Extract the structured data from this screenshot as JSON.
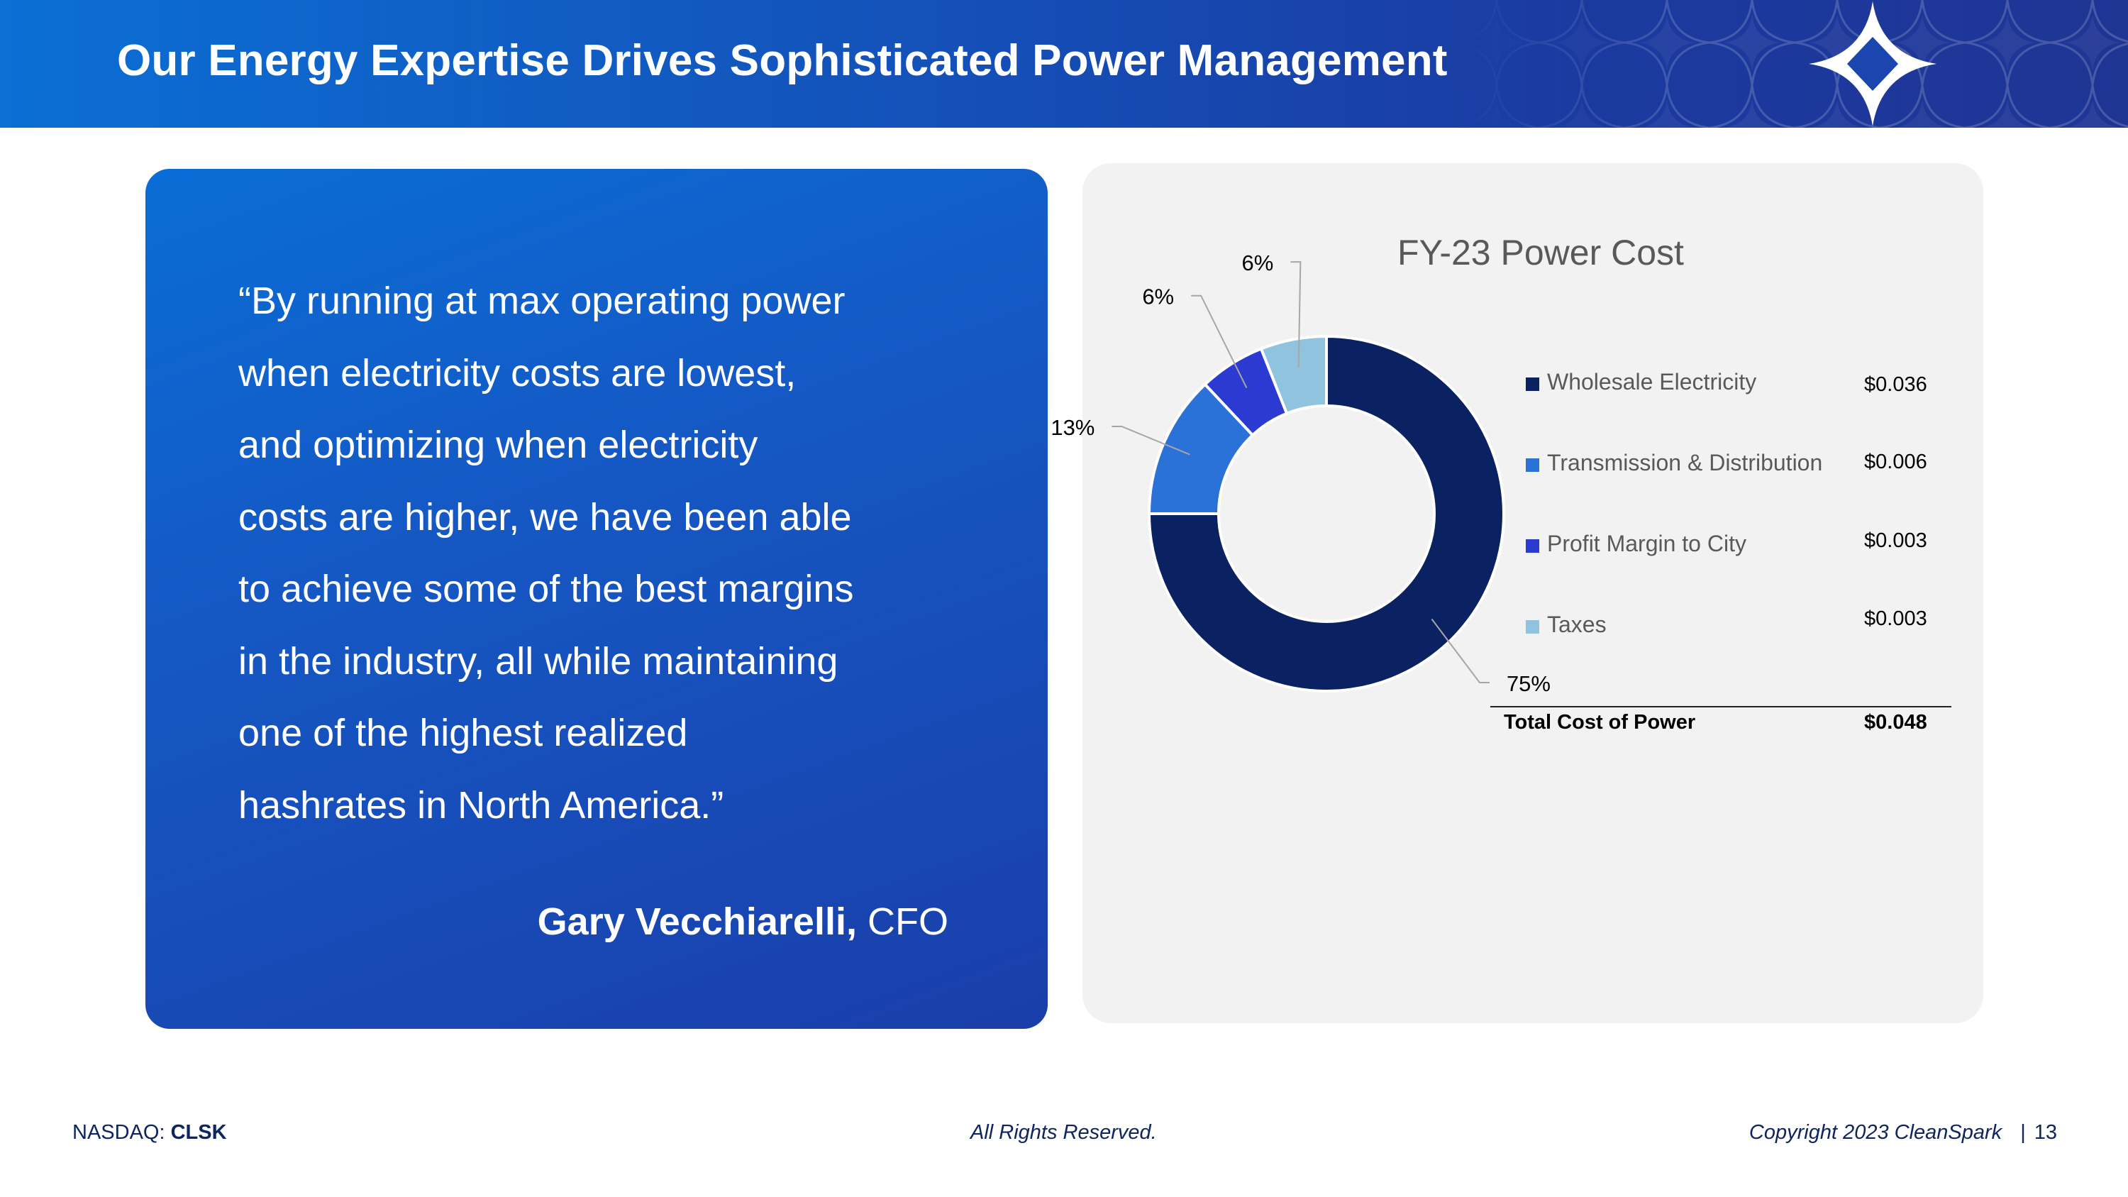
{
  "header": {
    "title": "Our Energy Expertise Drives Sophisticated Power Management"
  },
  "quote": {
    "lines": [
      "“By running at max operating power",
      "when electricity costs are lowest,",
      "and optimizing when electricity",
      "costs are higher, we have been able",
      "to achieve some of the best margins",
      "in the industry, all while maintaining",
      "one of the highest realized",
      "hashrates in North America.”"
    ],
    "author_name": "Gary Vecchiarelli,",
    "author_title": "CFO"
  },
  "chart_data": {
    "type": "pie",
    "title": "FY-23 Power Cost",
    "donut": true,
    "categories": [
      "Wholesale Electricity",
      "Transmission & Distribution",
      "Profit Margin to City",
      "Taxes"
    ],
    "values": [
      75,
      13,
      6,
      6
    ],
    "value_labels": [
      "75%",
      "13%",
      "6%",
      "6%"
    ],
    "costs": [
      "$0.036",
      "$0.006",
      "$0.003",
      "$0.003"
    ],
    "colors": [
      "#0b2262",
      "#2a72d8",
      "#2b3ad0",
      "#8fc3de"
    ],
    "legend_position": "right",
    "total_label": "Total Cost of Power",
    "total_value": "$0.048"
  },
  "footer": {
    "left_prefix": "NASDAQ:",
    "left_ticker": "CLSK",
    "center": "All Rights Reserved.",
    "right_copyright": "Copyright 2023 CleanSpark",
    "page_separator": "|",
    "page_number": "13"
  },
  "colors": {
    "header_start": "#0b6fd4",
    "header_end": "#1f3594",
    "quote_card": "#1558c4",
    "chart_card": "#f2f2f2",
    "footer_text": "#0f2560"
  }
}
